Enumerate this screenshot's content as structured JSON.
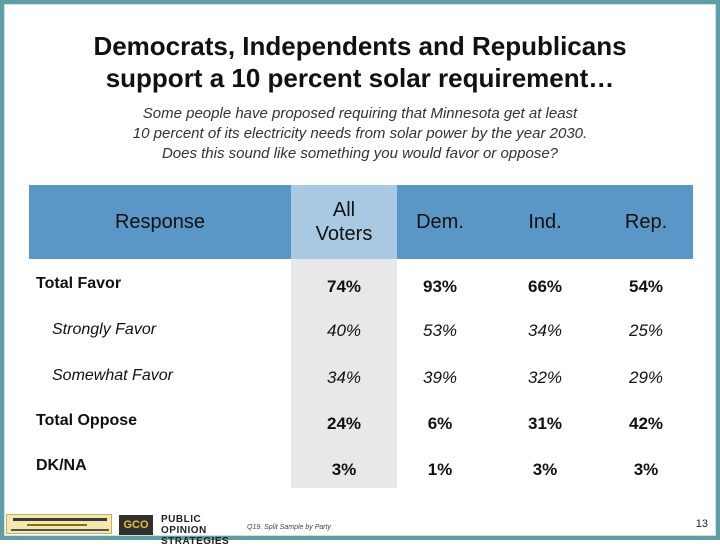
{
  "title": {
    "line1": "Democrats, Independents and Republicans",
    "line2": "support a 10 percent solar requirement…"
  },
  "subtitle": {
    "line1": "Some people have proposed requiring that Minnesota get at least",
    "line2": "10 percent of its electricity needs from solar power by the year 2030.",
    "line3": "Does this sound like something you would favor or oppose?"
  },
  "table": {
    "headers": {
      "response": "Response",
      "all_voters_1": "All",
      "all_voters_2": "Voters",
      "dem": "Dem.",
      "ind": "Ind.",
      "rep": "Rep."
    },
    "rows": [
      {
        "label": "Total Favor",
        "all": "74%",
        "dem": "93%",
        "ind": "66%",
        "rep": "54%"
      },
      {
        "label": "Strongly Favor",
        "all": "40%",
        "dem": "53%",
        "ind": "34%",
        "rep": "25%"
      },
      {
        "label": "Somewhat Favor",
        "all": "34%",
        "dem": "39%",
        "ind": "32%",
        "rep": "29%"
      },
      {
        "label": "Total Oppose",
        "all": "24%",
        "dem": "6%",
        "ind": "31%",
        "rep": "42%"
      },
      {
        "label": "DK/NA",
        "all": "3%",
        "dem": "1%",
        "ind": "3%",
        "rep": "3%"
      }
    ]
  },
  "footer": {
    "logo_brand": "GCO",
    "logo_line1": "PUBLIC OPINION",
    "logo_line2": "STRATEGIES",
    "footnote": "Q19. Split Sample by Party",
    "page_number": "13"
  },
  "colors": {
    "frame": "#5f9ea4",
    "header": "#5b97c6",
    "all_voters_header": "#a9c9e3",
    "all_voters_column": "#e8e8e8"
  }
}
